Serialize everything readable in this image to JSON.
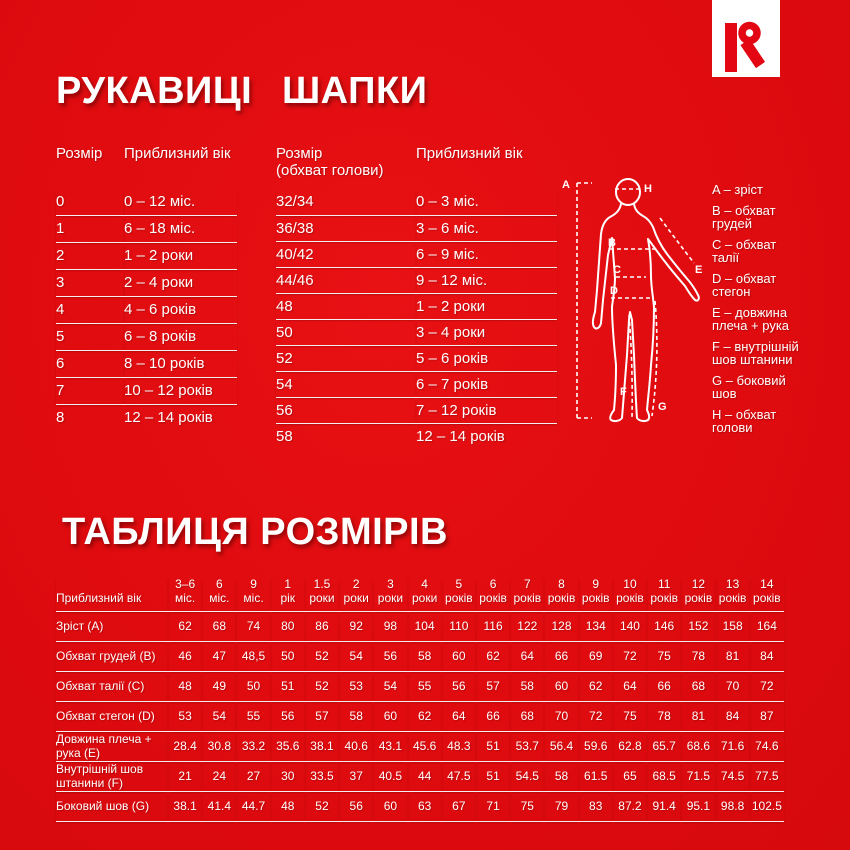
{
  "colors": {
    "background_red": "#de0a0e",
    "brand_red": "#e30613",
    "text": "#ffffff"
  },
  "mittens": {
    "title": "РУКАВИЦІ",
    "table": {
      "head": [
        "Розмір",
        "Приблизний вік"
      ],
      "rows": [
        [
          "0",
          "0 – 12 міс."
        ],
        [
          "1",
          "6 – 18 міс."
        ],
        [
          "2",
          "1 – 2 роки"
        ],
        [
          "3",
          "2 – 4 роки"
        ],
        [
          "4",
          "4 – 6 років"
        ],
        [
          "5",
          "6 – 8 років"
        ],
        [
          "6",
          "8 – 10 років"
        ],
        [
          "7",
          "10 – 12 років"
        ],
        [
          "8",
          "12 – 14 років"
        ]
      ]
    }
  },
  "hats": {
    "title": "ШАПКИ",
    "table": {
      "head": [
        "Розмір\n(обхват голови)",
        "Приблизний вік"
      ],
      "rows": [
        [
          "32/34",
          "0 – 3 міс."
        ],
        [
          "36/38",
          "3 – 6 міс."
        ],
        [
          "40/42",
          "6 – 9 міс."
        ],
        [
          "44/46",
          "9 – 12 міс."
        ],
        [
          "48",
          "1 – 2 роки"
        ],
        [
          "50",
          "3 – 4 роки"
        ],
        [
          "52",
          "5 – 6 років"
        ],
        [
          "54",
          "6 – 7 років"
        ],
        [
          "56",
          "7 – 12 років"
        ],
        [
          "58",
          "12 – 14 років"
        ]
      ]
    }
  },
  "figure": {
    "labels": [
      "A",
      "B",
      "C",
      "D",
      "E",
      "F",
      "G",
      "H"
    ]
  },
  "legend": {
    "items": [
      "A – зріст",
      "B – обхват\nгрудей",
      "C – обхват\nталії",
      "D – обхват\nстегон",
      "E – довжина\nплеча + рука",
      "F – внутрішній\nшов штанини",
      "G – боковий\nшов",
      "H – обхват\nголови"
    ]
  },
  "size_chart": {
    "title": "ТАБЛИЦЯ РОЗМІРІВ",
    "table": {
      "head": [
        "Приблизний вік",
        "3–6\nміс.",
        "6\nміс.",
        "9\nміс.",
        "1\nрік",
        "1.5\nроки",
        "2\nроки",
        "3\nроки",
        "4\nроки",
        "5\nроків",
        "6\nроків",
        "7\nроків",
        "8\nроків",
        "9\nроків",
        "10\nроків",
        "11\nроків",
        "12\nроків",
        "13\nроків",
        "14\nроків"
      ],
      "rows": [
        [
          "Зріст (A)",
          "62",
          "68",
          "74",
          "80",
          "86",
          "92",
          "98",
          "104",
          "110",
          "116",
          "122",
          "128",
          "134",
          "140",
          "146",
          "152",
          "158",
          "164"
        ],
        [
          "Обхват грудей (B)",
          "46",
          "47",
          "48,5",
          "50",
          "52",
          "54",
          "56",
          "58",
          "60",
          "62",
          "64",
          "66",
          "69",
          "72",
          "75",
          "78",
          "81",
          "84"
        ],
        [
          "Обхват талії (C)",
          "48",
          "49",
          "50",
          "51",
          "52",
          "53",
          "54",
          "55",
          "56",
          "57",
          "58",
          "60",
          "62",
          "64",
          "66",
          "68",
          "70",
          "72"
        ],
        [
          "Обхват стегон (D)",
          "53",
          "54",
          "55",
          "56",
          "57",
          "58",
          "60",
          "62",
          "64",
          "66",
          "68",
          "70",
          "72",
          "75",
          "78",
          "81",
          "84",
          "87"
        ],
        [
          "Довжина плеча +\nрука (E)",
          "28.4",
          "30.8",
          "33.2",
          "35.6",
          "38.1",
          "40.6",
          "43.1",
          "45.6",
          "48.3",
          "51",
          "53.7",
          "56.4",
          "59.6",
          "62.8",
          "65.7",
          "68.6",
          "71.6",
          "74.6"
        ],
        [
          "Внутрішній шов\nштанини (F)",
          "21",
          "24",
          "27",
          "30",
          "33.5",
          "37",
          "40.5",
          "44",
          "47.5",
          "51",
          "54.5",
          "58",
          "61.5",
          "65",
          "68.5",
          "71.5",
          "74.5",
          "77.5"
        ],
        [
          "Боковий шов (G)",
          "38.1",
          "41.4",
          "44.7",
          "48",
          "52",
          "56",
          "60",
          "63",
          "67",
          "71",
          "75",
          "79",
          "83",
          "87.2",
          "91.4",
          "95.1",
          "98.8",
          "102.5"
        ]
      ]
    }
  }
}
